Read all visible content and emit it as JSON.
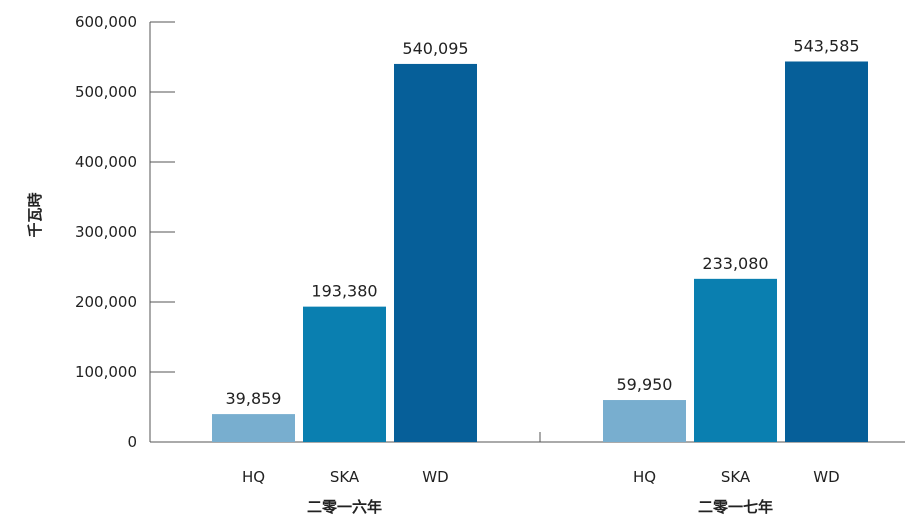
{
  "chart_data": {
    "type": "bar",
    "ylabel": "千瓦時",
    "ylim": [
      0,
      600000
    ],
    "yticks": [
      "0",
      "100,000",
      "200,000",
      "300,000",
      "400,000",
      "500,000",
      "600,000"
    ],
    "ytick_values": [
      0,
      100000,
      200000,
      300000,
      400000,
      500000,
      600000
    ],
    "grid": false,
    "colors": {
      "HQ": "#78aecf",
      "SKA": "#0a7fb0",
      "WD": "#065f99"
    },
    "groups": [
      {
        "label": "二零一六年",
        "categories": [
          "HQ",
          "SKA",
          "WD"
        ],
        "values": [
          39859,
          193380,
          540095
        ],
        "value_labels": [
          "39,859",
          "193,380",
          "540,095"
        ]
      },
      {
        "label": "二零一七年",
        "categories": [
          "HQ",
          "SKA",
          "WD"
        ],
        "values": [
          59950,
          233080,
          543585
        ],
        "value_labels": [
          "59,950",
          "233,080",
          "543,585"
        ]
      }
    ]
  }
}
